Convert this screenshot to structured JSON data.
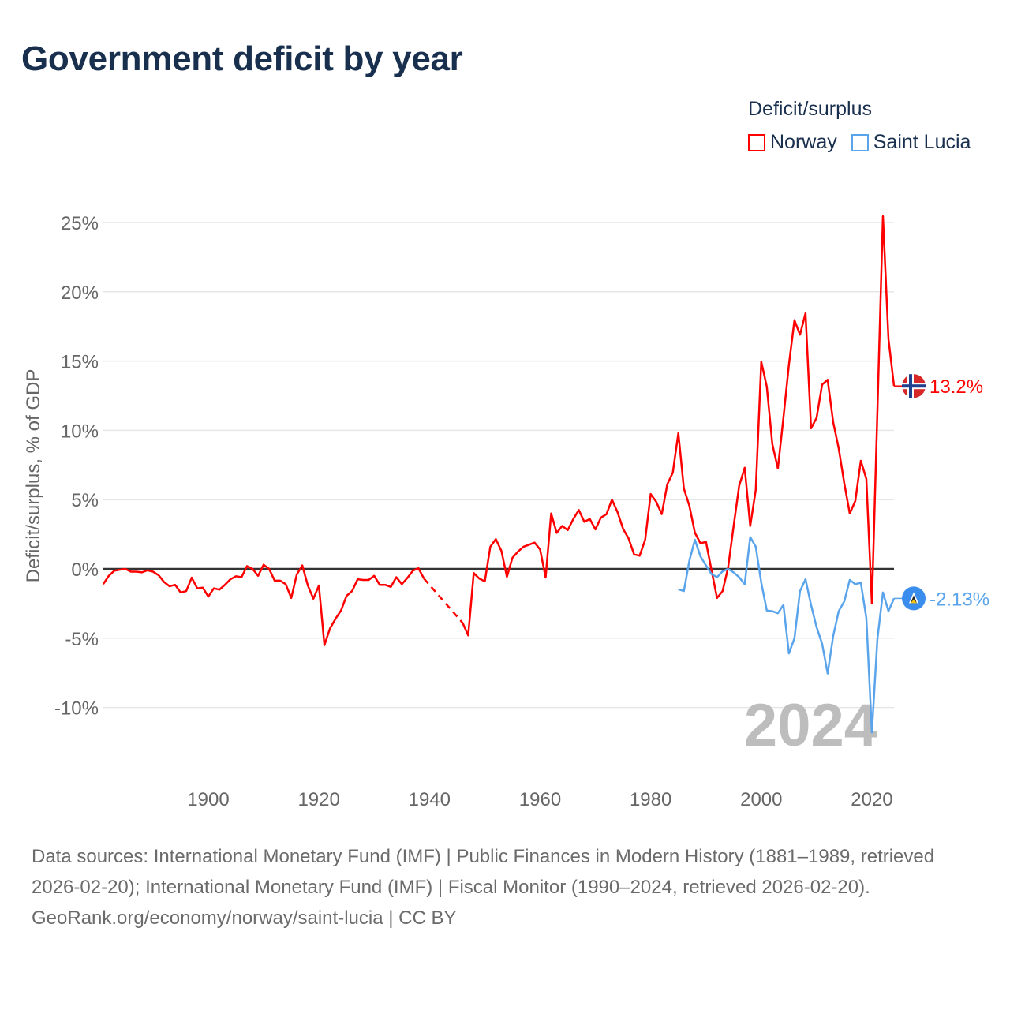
{
  "title": "Government deficit by year",
  "legend": {
    "title": "Deficit/surplus",
    "items": [
      {
        "label": "Norway",
        "color": "#ff0000"
      },
      {
        "label": "Saint Lucia",
        "color": "#5aa4ec"
      }
    ]
  },
  "footer": {
    "sources": "Data sources: International Monetary Fund (IMF) | Public Finances in Modern History (1881–1989, retrieved 2026-02-20); International Monetary Fund (IMF) | Fiscal Monitor (1990–2024, retrieved 2026-02-20).",
    "credit": "GeoRank.org/economy/norway/saint-lucia | CC BY"
  },
  "chart_data": {
    "type": "line",
    "title": "Government deficit by year",
    "ylabel": "Deficit/surplus, % of GDP",
    "xlabel": "",
    "xlim": [
      1881,
      2024
    ],
    "ylim": [
      -12.5,
      25.5
    ],
    "x_ticks": [
      1900,
      1920,
      1940,
      1960,
      1980,
      2000,
      2020
    ],
    "y_ticks": [
      25,
      20,
      15,
      10,
      5,
      0,
      -5,
      -10
    ],
    "y_tick_labels": [
      "25%",
      "20%",
      "15%",
      "10%",
      "5%",
      "0%",
      "-5%",
      "-10%"
    ],
    "grid": true,
    "legend_position": "top-right",
    "watermark_year": "2024",
    "series": [
      {
        "name": "Norway",
        "color": "#ff0000",
        "start_year": 1881,
        "end_label": "13.2%",
        "flag": "norway-flag",
        "values": [
          -1.1,
          -0.5,
          -0.13,
          -0.06,
          0,
          -0.2,
          -0.2,
          -0.25,
          -0.1,
          -0.2,
          -0.45,
          -0.95,
          -1.25,
          -1.15,
          -1.7,
          -1.6,
          -0.63,
          -1.4,
          -1.35,
          -2.0,
          -1.4,
          -1.5,
          -1.15,
          -0.75,
          -0.53,
          -0.6,
          0.2,
          0,
          -0.5,
          0.3,
          0,
          -0.85,
          -0.85,
          -1.1,
          -2.1,
          -0.4,
          0.25,
          -1.2,
          -2.15,
          -1.2,
          -5.5,
          -4.3,
          -3.6,
          -3.0,
          -1.95,
          -1.6,
          -0.75,
          -0.8,
          -0.8,
          -0.5,
          -1.15,
          -1.15,
          -1.3,
          -0.6,
          -1.1,
          -0.65,
          -0.13,
          0.05,
          -0.7,
          null,
          null,
          null,
          null,
          null,
          null,
          -3.9,
          -4.8,
          -0.3,
          -0.7,
          -0.9,
          1.6,
          2.15,
          1.3,
          -0.57,
          0.8,
          1.25,
          1.6,
          1.75,
          1.9,
          1.4,
          -0.63,
          4.0,
          2.6,
          3.1,
          2.8,
          3.6,
          4.25,
          3.4,
          3.6,
          2.85,
          3.7,
          3.95,
          5.0,
          4.1,
          2.9,
          2.2,
          1.05,
          0.95,
          2.1,
          5.4,
          4.85,
          3.95,
          6.1,
          6.95,
          9.8,
          5.8,
          4.55,
          2.6,
          1.85,
          1.95,
          -0.1,
          -2.1,
          -1.6,
          0.1,
          3.1,
          6.0,
          7.3,
          3.1,
          5.7,
          14.95,
          13.15,
          9.0,
          7.25,
          10.9,
          14.75,
          17.95,
          16.9,
          18.45,
          10.15,
          10.9,
          13.3,
          13.65,
          10.6,
          8.7,
          6.2,
          4.0,
          4.9,
          7.8,
          6.5,
          -2.5,
          11.4,
          25.45,
          16.6,
          13.2
        ]
      },
      {
        "name": "Saint Lucia",
        "color": "#5aa4ec",
        "start_year": 1985,
        "end_label": "-2.13%",
        "flag": "saint-lucia-flag",
        "values": [
          -1.47,
          -1.6,
          0.6,
          2.1,
          0.9,
          0.25,
          -0.37,
          -0.6,
          -0.17,
          0,
          -0.25,
          -0.6,
          -1.1,
          2.3,
          1.6,
          -1.0,
          -3.0,
          -3.05,
          -3.2,
          -2.6,
          -6.1,
          -5.0,
          -1.6,
          -0.75,
          -2.6,
          -4.2,
          -5.4,
          -7.55,
          -4.85,
          -3.05,
          -2.35,
          -0.8,
          -1.1,
          -1.0,
          -3.55,
          -11.8,
          -5.05,
          -1.7,
          -3.05,
          -2.13
        ]
      }
    ]
  }
}
